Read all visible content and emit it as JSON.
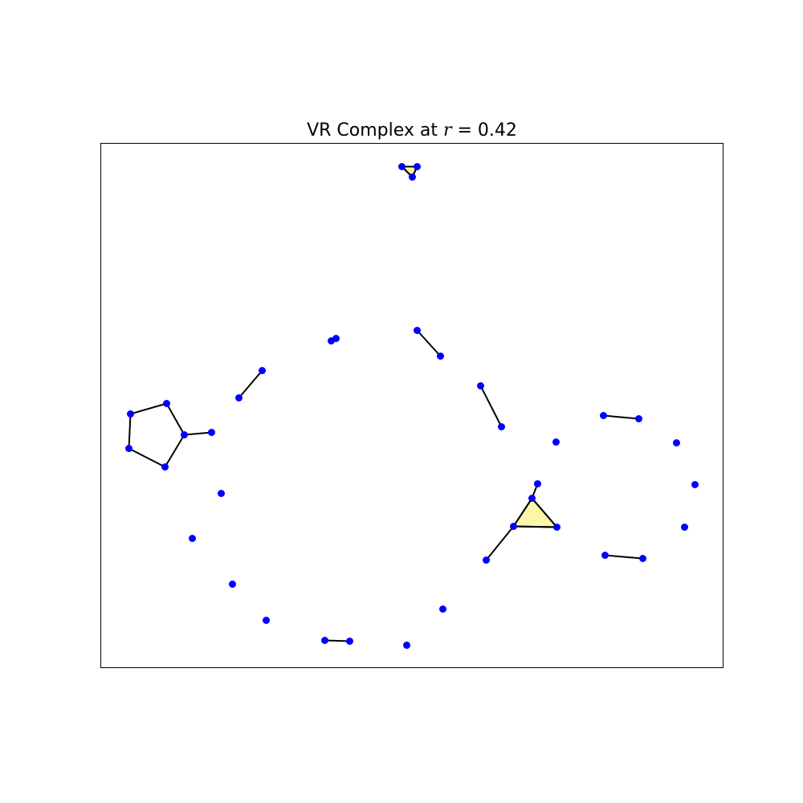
{
  "chart_data": {
    "type": "scatter",
    "title_prefix": "VR Complex at ",
    "title_var": "r",
    "title_suffix": " = 0.42",
    "xlabel": "",
    "ylabel": "",
    "axis_ticks": false,
    "grid": false,
    "colors": {
      "point": "#0000ff",
      "edge": "#000000",
      "triangle_fill": "#fbf7a6",
      "triangle_stroke": "#000000",
      "frame": "#000000",
      "background": "#ffffff"
    },
    "xlim": [
      0,
      775
    ],
    "ylim": [
      0,
      653
    ],
    "points": [
      {
        "x": 375,
        "y": 624
      },
      {
        "x": 394,
        "y": 624
      },
      {
        "x": 388,
        "y": 611
      },
      {
        "x": 287,
        "y": 407
      },
      {
        "x": 293,
        "y": 410
      },
      {
        "x": 394,
        "y": 420
      },
      {
        "x": 423,
        "y": 388
      },
      {
        "x": 201,
        "y": 370
      },
      {
        "x": 172,
        "y": 336
      },
      {
        "x": 82,
        "y": 329
      },
      {
        "x": 37,
        "y": 316
      },
      {
        "x": 104,
        "y": 290
      },
      {
        "x": 138,
        "y": 293
      },
      {
        "x": 35,
        "y": 273
      },
      {
        "x": 80,
        "y": 250
      },
      {
        "x": 473,
        "y": 351
      },
      {
        "x": 499,
        "y": 300
      },
      {
        "x": 626,
        "y": 314
      },
      {
        "x": 670,
        "y": 310
      },
      {
        "x": 567,
        "y": 281
      },
      {
        "x": 717,
        "y": 280
      },
      {
        "x": 544,
        "y": 229
      },
      {
        "x": 537,
        "y": 211
      },
      {
        "x": 514,
        "y": 176
      },
      {
        "x": 568,
        "y": 175
      },
      {
        "x": 740,
        "y": 228
      },
      {
        "x": 727,
        "y": 175
      },
      {
        "x": 150,
        "y": 217
      },
      {
        "x": 114,
        "y": 161
      },
      {
        "x": 480,
        "y": 134
      },
      {
        "x": 628,
        "y": 140
      },
      {
        "x": 675,
        "y": 136
      },
      {
        "x": 164,
        "y": 104
      },
      {
        "x": 206,
        "y": 59
      },
      {
        "x": 426,
        "y": 73
      },
      {
        "x": 279,
        "y": 34
      },
      {
        "x": 310,
        "y": 33
      },
      {
        "x": 381,
        "y": 28
      }
    ],
    "edges": [
      [
        0,
        1
      ],
      [
        0,
        2
      ],
      [
        1,
        2
      ],
      [
        5,
        6
      ],
      [
        3,
        4
      ],
      [
        7,
        8
      ],
      [
        9,
        10
      ],
      [
        9,
        11
      ],
      [
        11,
        12
      ],
      [
        11,
        14
      ],
      [
        14,
        13
      ],
      [
        13,
        10
      ],
      [
        17,
        18
      ],
      [
        15,
        16
      ],
      [
        22,
        21
      ],
      [
        22,
        23
      ],
      [
        22,
        24
      ],
      [
        23,
        24
      ],
      [
        23,
        29
      ],
      [
        30,
        31
      ],
      [
        35,
        36
      ]
    ],
    "triangles": [
      [
        0,
        1,
        2
      ],
      [
        22,
        23,
        24
      ]
    ]
  }
}
